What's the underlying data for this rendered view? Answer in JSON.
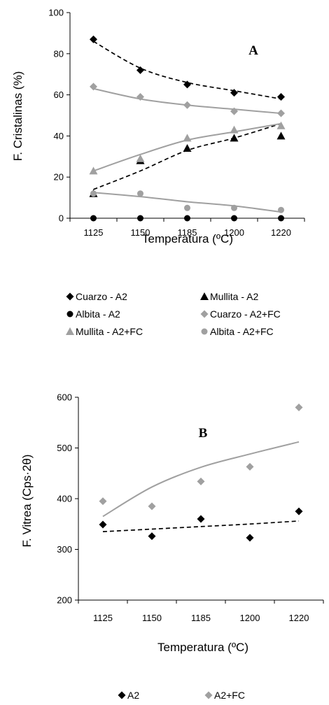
{
  "chart_data": [
    {
      "type": "scatter",
      "panel_label": "A",
      "xlabel": "Temperatura (ºC)",
      "ylabel": "F. Cristalinas  (%)",
      "categories": [
        "1125",
        "1150",
        "1185",
        "1200",
        "1220"
      ],
      "ylim": [
        0,
        100
      ],
      "yticks": [
        0,
        20,
        40,
        60,
        80,
        100
      ],
      "legend_position": "bottom",
      "series": [
        {
          "name": "Cuarzo - A2",
          "marker": "diamond",
          "color": "#000000",
          "values": [
            87,
            72,
            65,
            61,
            59
          ],
          "trend": "dashed"
        },
        {
          "name": "Mullita - A2",
          "marker": "triangle",
          "color": "#000000",
          "values": [
            12,
            28,
            34,
            39,
            40
          ],
          "trend": "dashed"
        },
        {
          "name": "Albita - A2",
          "marker": "circle",
          "color": "#000000",
          "values": [
            0,
            0,
            0,
            0,
            0
          ],
          "trend": "none"
        },
        {
          "name": "Cuarzo - A2+FC",
          "marker": "diamond",
          "color": "#a0a0a0",
          "values": [
            64,
            59,
            55,
            52,
            51
          ],
          "trend": "solid"
        },
        {
          "name": "Mullita - A2+FC",
          "marker": "triangle",
          "color": "#a0a0a0",
          "values": [
            23,
            29,
            39,
            43,
            45
          ],
          "trend": "solid"
        },
        {
          "name": "Albita - A2+FC",
          "marker": "circle",
          "color": "#a0a0a0",
          "values": [
            12,
            12,
            5,
            5,
            4
          ],
          "trend": "solid"
        }
      ],
      "trendlines": [
        {
          "color": "#000000",
          "dash": true,
          "values": [
            86,
            73,
            66,
            62,
            58
          ]
        },
        {
          "color": "#000000",
          "dash": true,
          "values": [
            14,
            23,
            33,
            39,
            46
          ]
        },
        {
          "color": "#a0a0a0",
          "dash": false,
          "values": [
            63,
            58,
            55,
            53,
            51
          ]
        },
        {
          "color": "#a0a0a0",
          "dash": false,
          "values": [
            23,
            31,
            38,
            42,
            46
          ]
        },
        {
          "color": "#a0a0a0",
          "dash": false,
          "values": [
            12.5,
            10.5,
            8,
            6,
            3
          ]
        }
      ]
    },
    {
      "type": "scatter",
      "panel_label": "B",
      "xlabel": "Temperatura (ºC)",
      "ylabel": "F. Vitrea (Cps·2θ)",
      "categories": [
        "1125",
        "1150",
        "1185",
        "1200",
        "1220"
      ],
      "ylim": [
        200,
        600
      ],
      "yticks": [
        200,
        300,
        400,
        500,
        600
      ],
      "legend_position": "bottom",
      "series": [
        {
          "name": "A2",
          "marker": "diamond",
          "color": "#000000",
          "values": [
            349,
            326,
            360,
            323,
            375
          ],
          "trend": "dashed"
        },
        {
          "name": "A2+FC",
          "marker": "diamond",
          "color": "#a0a0a0",
          "values": [
            395,
            385,
            434,
            463,
            580
          ],
          "trend": "solid"
        }
      ],
      "trendlines": [
        {
          "color": "#000000",
          "dash": true,
          "values": [
            335,
            340,
            345,
            350,
            356
          ]
        },
        {
          "color": "#a0a0a0",
          "dash": false,
          "values": [
            365,
            423,
            462,
            488,
            512
          ]
        }
      ]
    }
  ]
}
